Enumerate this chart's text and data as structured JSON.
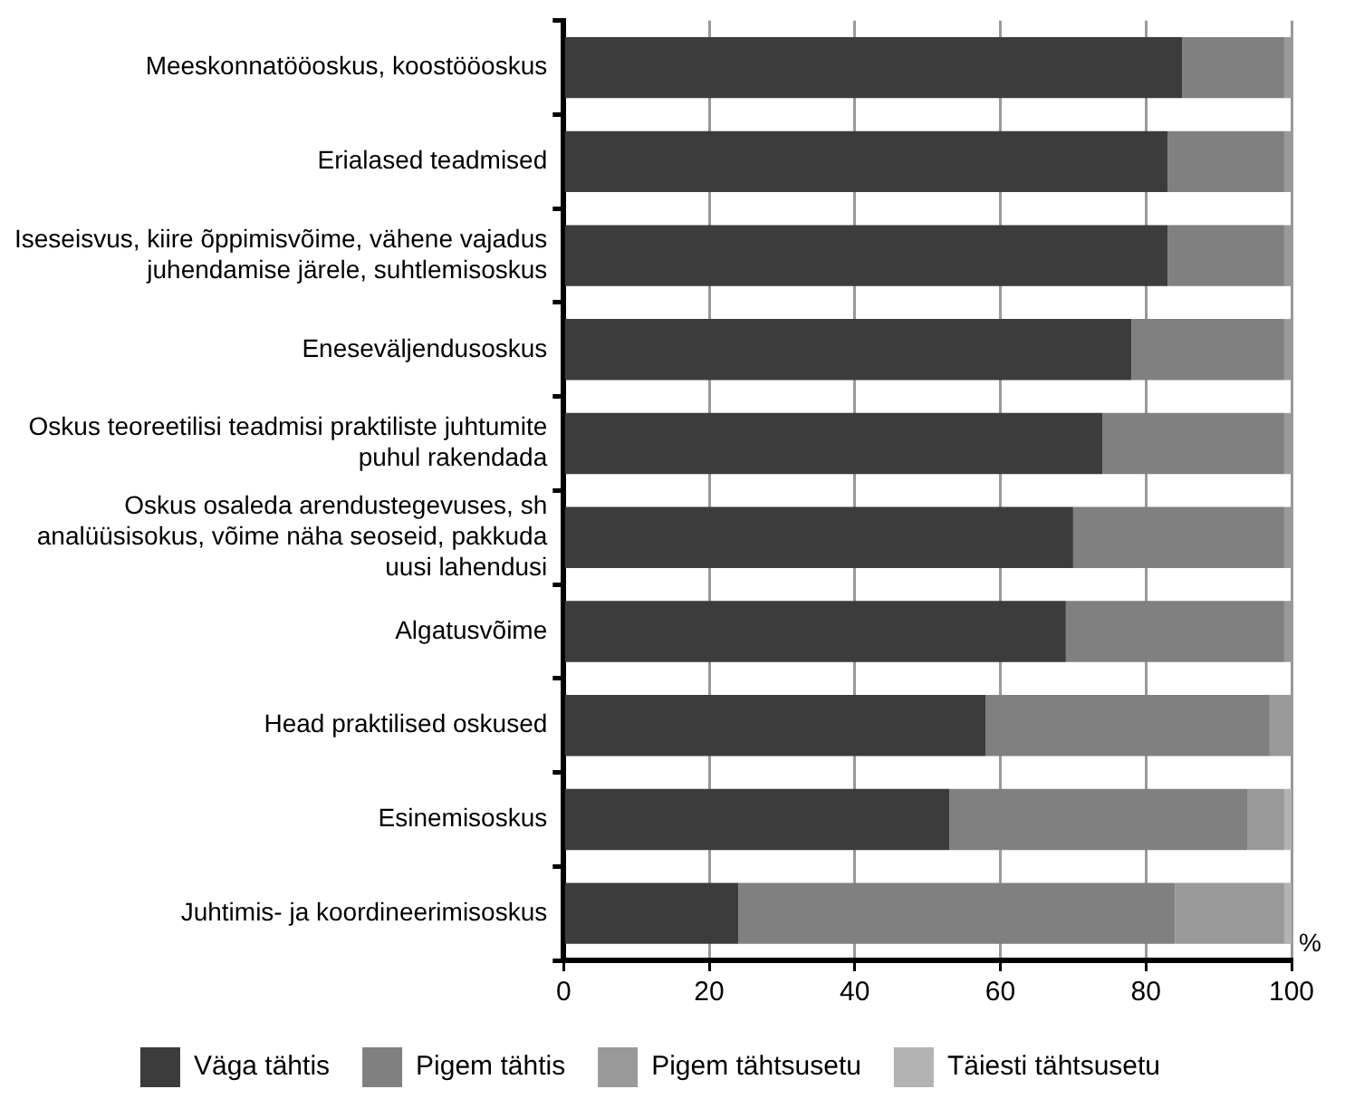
{
  "chart_data": {
    "type": "bar",
    "orientation": "horizontal",
    "stacked": true,
    "xlabel": "%",
    "categories": [
      "Meeskonnatööoskus, koostööoskus",
      "Erialased teadmised",
      "Iseseisvus, kiire õppimisvõime, vähene vajadus juhendamise järele, suhtlemisoskus",
      "Eneseväljendusoskus",
      "Oskus teoreetilisi teadmisi praktiliste juhtumite puhul rakendada",
      "Oskus osaleda arendustegevuses, sh analüüsisokus, võime näha seoseid, pakkuda uusi lahendusi",
      "Algatusvõime",
      "Head praktilised oskused",
      "Esinemisoskus",
      "Juhtimis- ja koordineerimisoskus"
    ],
    "series": [
      {
        "name": "Väga tähtis",
        "color": "#3c3c3c",
        "values": [
          85,
          83,
          83,
          78,
          74,
          70,
          69,
          58,
          53,
          24
        ]
      },
      {
        "name": "Pigem tähtis",
        "color": "#808080",
        "values": [
          14,
          16,
          16,
          21,
          25,
          29,
          30,
          39,
          41,
          60
        ]
      },
      {
        "name": "Pigem tähtsusetu",
        "color": "#999999",
        "values": [
          1,
          1,
          1,
          1,
          1,
          1,
          1,
          3,
          5,
          15
        ]
      },
      {
        "name": "Täiesti tähtsusetu",
        "color": "#b3b3b3",
        "values": [
          0,
          0,
          0,
          0,
          0,
          0,
          0,
          0,
          1,
          1
        ]
      }
    ],
    "xlim": [
      0,
      100
    ],
    "xticks": [
      0,
      20,
      40,
      60,
      80,
      100
    ],
    "grid": "x",
    "legend": "bottom"
  }
}
